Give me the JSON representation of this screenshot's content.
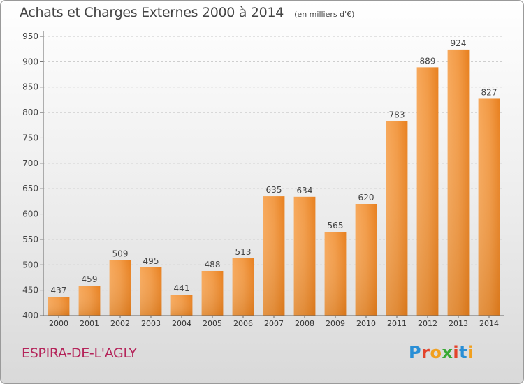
{
  "title": "Achats et Charges Externes 2000 à 2014",
  "unit": "(en milliers d'€)",
  "city": "ESPIRA-DE-L'AGLY",
  "logo": {
    "letters": [
      "P",
      "r",
      "o",
      "x",
      "i",
      "t",
      "i"
    ],
    "colors": [
      "#2a8fd6",
      "#e3432b",
      "#f1a01e",
      "#39a935",
      "#e3432b",
      "#2a8fd6",
      "#f1a01e"
    ]
  },
  "chart_data": {
    "type": "bar",
    "categories": [
      "2000",
      "2001",
      "2002",
      "2003",
      "2004",
      "2005",
      "2006",
      "2007",
      "2008",
      "2009",
      "2010",
      "2011",
      "2012",
      "2013",
      "2014"
    ],
    "values": [
      437,
      459,
      509,
      495,
      441,
      488,
      513,
      635,
      634,
      565,
      620,
      783,
      889,
      924,
      827
    ],
    "yticks": [
      400,
      450,
      500,
      550,
      600,
      650,
      700,
      750,
      800,
      850,
      900,
      950
    ],
    "ylim": [
      400,
      950
    ],
    "grid": true,
    "bar_color": "#f0882a"
  }
}
